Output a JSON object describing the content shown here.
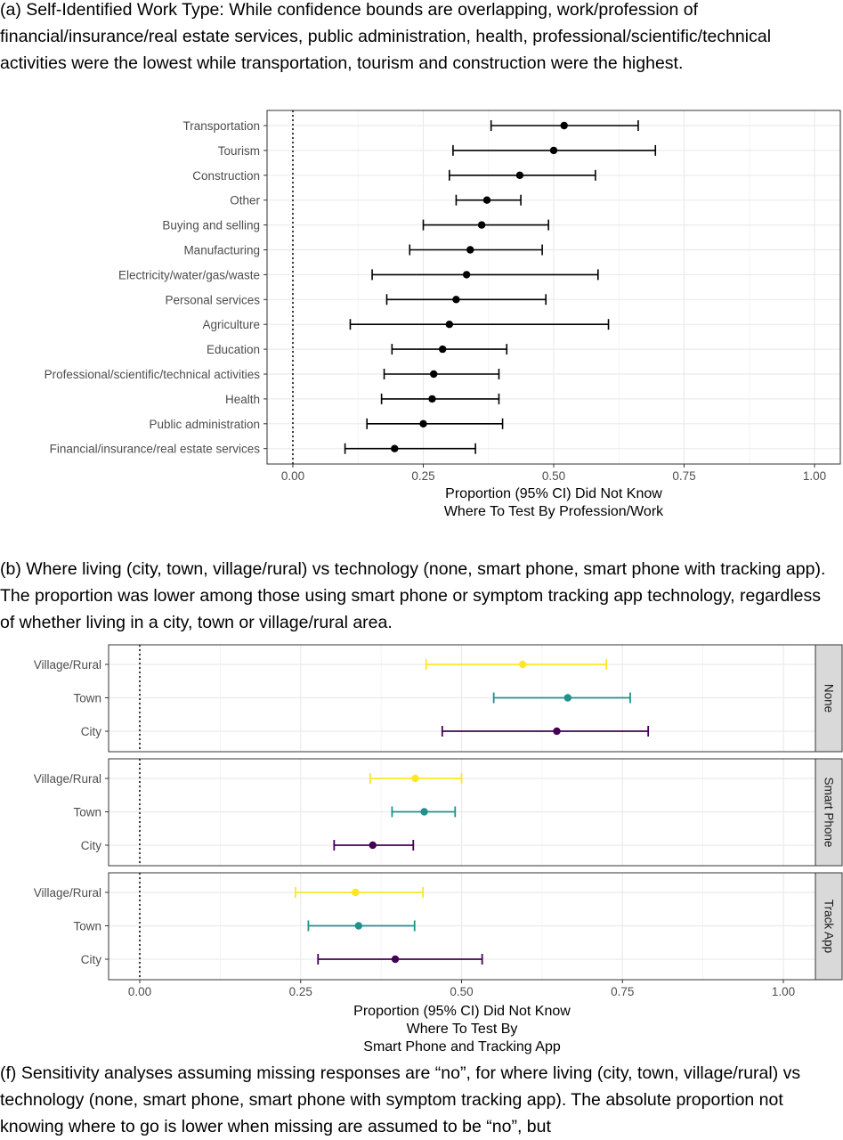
{
  "captions": {
    "a": "(a) Self-Identified Work Type: While confidence bounds are overlapping, work/profession of financial/insurance/real estate services, public administration, health, professional/scientific/technical activities were the lowest while transportation, tourism and construction were the highest.",
    "b": "(b) Where living (city, town, village/rural) vs technology (none, smart phone, smart phone with tracking app). The proportion was lower among those using smart phone or symptom tracking app technology, regardless of whether living in a city, town or village/rural area.",
    "f": "(f) Sensitivity analyses assuming missing responses are “no”, for where living (city, town, village/rural) vs technology (none, smart phone, smart phone with symptom tracking app). The absolute proportion not knowing where to go is lower when missing are assumed to be “no”, but"
  },
  "chart_data": [
    {
      "type": "scatter",
      "subtype": "point-range",
      "xlabel": [
        "Proportion (95% CI) Did Not Know",
        "Where To Test By Profession/Work"
      ],
      "xlim": [
        0,
        1
      ],
      "xticks": [
        0,
        0.25,
        0.5,
        0.75,
        1
      ],
      "xtick_labels": [
        "0.00",
        "0.25",
        "0.50",
        "0.75",
        "1.00"
      ],
      "reference_line_x": 0,
      "grid": true,
      "categories": [
        "Transportation",
        "Tourism",
        "Construction",
        "Other",
        "Buying and selling",
        "Manufacturing",
        "Electricity/water/gas/waste",
        "Personal services",
        "Agriculture",
        "Education",
        "Professional/scientific/technical activities",
        "Health",
        "Public administration",
        "Financial/insurance/real estate services"
      ],
      "estimate": [
        0.52,
        0.5,
        0.435,
        0.372,
        0.362,
        0.34,
        0.333,
        0.313,
        0.3,
        0.287,
        0.27,
        0.267,
        0.25,
        0.195
      ],
      "lower": [
        0.38,
        0.307,
        0.3,
        0.313,
        0.25,
        0.224,
        0.152,
        0.18,
        0.11,
        0.19,
        0.175,
        0.17,
        0.142,
        0.1
      ],
      "upper": [
        0.662,
        0.695,
        0.58,
        0.437,
        0.49,
        0.478,
        0.585,
        0.485,
        0.605,
        0.41,
        0.395,
        0.395,
        0.402,
        0.35
      ],
      "color": "#000000"
    },
    {
      "type": "scatter",
      "subtype": "point-range-faceted",
      "xlabel": [
        "Proportion (95% CI) Did Not Know",
        "Where To Test By",
        "Smart Phone and Tracking App"
      ],
      "xlim": [
        0,
        1
      ],
      "xticks": [
        0,
        0.25,
        0.5,
        0.75,
        1
      ],
      "xtick_labels": [
        "0.00",
        "0.25",
        "0.50",
        "0.75",
        "1.00"
      ],
      "reference_line_x": 0,
      "grid": true,
      "categories": [
        "Village/Rural",
        "Town",
        "City"
      ],
      "colors": {
        "Village/Rural": "#fde725",
        "Town": "#21918c",
        "City": "#440154"
      },
      "facets": [
        {
          "name": "None",
          "estimate": [
            0.595,
            0.665,
            0.648
          ],
          "lower": [
            0.445,
            0.55,
            0.47
          ],
          "upper": [
            0.725,
            0.762,
            0.79
          ]
        },
        {
          "name": "Smart Phone",
          "estimate": [
            0.428,
            0.442,
            0.362
          ],
          "lower": [
            0.358,
            0.392,
            0.302
          ],
          "upper": [
            0.5,
            0.49,
            0.425
          ]
        },
        {
          "name": "Track App",
          "estimate": [
            0.335,
            0.34,
            0.397
          ],
          "lower": [
            0.242,
            0.262,
            0.277
          ],
          "upper": [
            0.44,
            0.427,
            0.532
          ]
        }
      ]
    }
  ]
}
